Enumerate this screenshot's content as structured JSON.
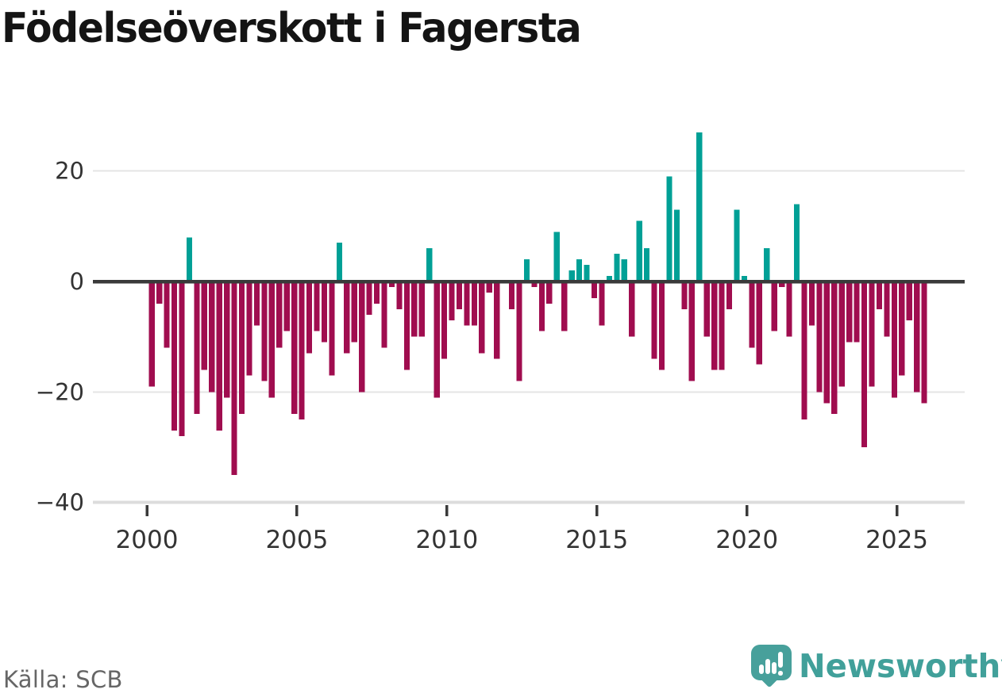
{
  "title": "Födelseöverskott i Fagersta",
  "source": {
    "label": "Källa: SCB"
  },
  "logo": {
    "text": "Newsworthy",
    "icon": "speech-bubble-bar-chart-icon"
  },
  "colors": {
    "positive": "#00a096",
    "negative": "#a00d4f",
    "zero_line": "#3a3a3a",
    "gridline": "#e4e4e4",
    "bottom_axis": "#dcdcdc",
    "tick": "#3a3a3a",
    "axis_text": "#333333",
    "title_text": "#141414",
    "source_text": "#666666",
    "logo_teal": "#47a09b"
  },
  "chart_data": {
    "type": "bar",
    "title": "Födelseöverskott i Fagersta",
    "frequency": "quarterly",
    "xlabel": "",
    "ylabel": "",
    "grid": "horizontal",
    "legend": "none",
    "ylim": [
      -40,
      30
    ],
    "yticks": [
      20,
      0,
      -20,
      -40
    ],
    "ytick_labels": [
      "20",
      "0",
      "−20",
      "−40"
    ],
    "xticks": [
      2000,
      2005,
      2010,
      2015,
      2020,
      2025
    ],
    "xtick_labels": [
      "2000",
      "2005",
      "2010",
      "2015",
      "2020",
      "2025"
    ],
    "positive_color": "#00a096",
    "negative_color": "#a00d4f",
    "categories": [
      "2000 Q1",
      "2000 Q2",
      "2000 Q3",
      "2000 Q4",
      "2001 Q1",
      "2001 Q2",
      "2001 Q3",
      "2001 Q4",
      "2002 Q1",
      "2002 Q2",
      "2002 Q3",
      "2002 Q4",
      "2003 Q1",
      "2003 Q2",
      "2003 Q3",
      "2003 Q4",
      "2004 Q1",
      "2004 Q2",
      "2004 Q3",
      "2004 Q4",
      "2005 Q1",
      "2005 Q2",
      "2005 Q3",
      "2005 Q4",
      "2006 Q1",
      "2006 Q2",
      "2006 Q3",
      "2006 Q4",
      "2007 Q1",
      "2007 Q2",
      "2007 Q3",
      "2007 Q4",
      "2008 Q1",
      "2008 Q2",
      "2008 Q3",
      "2008 Q4",
      "2009 Q1",
      "2009 Q2",
      "2009 Q3",
      "2009 Q4",
      "2010 Q1",
      "2010 Q2",
      "2010 Q3",
      "2010 Q4",
      "2011 Q1",
      "2011 Q2",
      "2011 Q3",
      "2011 Q4",
      "2012 Q1",
      "2012 Q2",
      "2012 Q3",
      "2012 Q4",
      "2013 Q1",
      "2013 Q2",
      "2013 Q3",
      "2013 Q4",
      "2014 Q1",
      "2014 Q2",
      "2014 Q3",
      "2014 Q4",
      "2015 Q1",
      "2015 Q2",
      "2015 Q3",
      "2015 Q4",
      "2016 Q1",
      "2016 Q2",
      "2016 Q3",
      "2016 Q4",
      "2017 Q1",
      "2017 Q2",
      "2017 Q3",
      "2017 Q4",
      "2018 Q1",
      "2018 Q2",
      "2018 Q3",
      "2018 Q4",
      "2019 Q1",
      "2019 Q2",
      "2019 Q3",
      "2019 Q4",
      "2020 Q1",
      "2020 Q2",
      "2020 Q3",
      "2020 Q4",
      "2021 Q1",
      "2021 Q2",
      "2021 Q3",
      "2021 Q4",
      "2022 Q1",
      "2022 Q2",
      "2022 Q3",
      "2022 Q4",
      "2023 Q1",
      "2023 Q2",
      "2023 Q3",
      "2023 Q4",
      "2024 Q1",
      "2024 Q2",
      "2024 Q3",
      "2024 Q4",
      "2025 Q1",
      "2025 Q2",
      "2025 Q3",
      "2025 Q4"
    ],
    "values": [
      -19,
      -4,
      -12,
      -27,
      -28,
      8,
      -24,
      -16,
      -20,
      -27,
      -21,
      -35,
      -24,
      -17,
      -8,
      -18,
      -21,
      -12,
      -9,
      -24,
      -25,
      -13,
      -9,
      -11,
      -17,
      7,
      -13,
      -11,
      -20,
      -6,
      -4,
      -12,
      -1,
      -5,
      -16,
      -10,
      -10,
      6,
      -21,
      -14,
      -7,
      -5,
      -8,
      -8,
      -13,
      -2,
      -14,
      0,
      -5,
      -18,
      4,
      -1,
      -9,
      -4,
      9,
      -9,
      2,
      4,
      3,
      -3,
      -8,
      1,
      5,
      4,
      -10,
      11,
      6,
      -14,
      -16,
      19,
      13,
      -5,
      -18,
      27,
      -10,
      -16,
      -16,
      -5,
      13,
      1,
      -12,
      -15,
      6,
      -9,
      -1,
      -10,
      14,
      -25,
      -8,
      -20,
      -22,
      -24,
      -19,
      -11,
      -11,
      -30,
      -19,
      -5,
      -10,
      -21,
      -17,
      -7,
      -20,
      -22
    ]
  }
}
